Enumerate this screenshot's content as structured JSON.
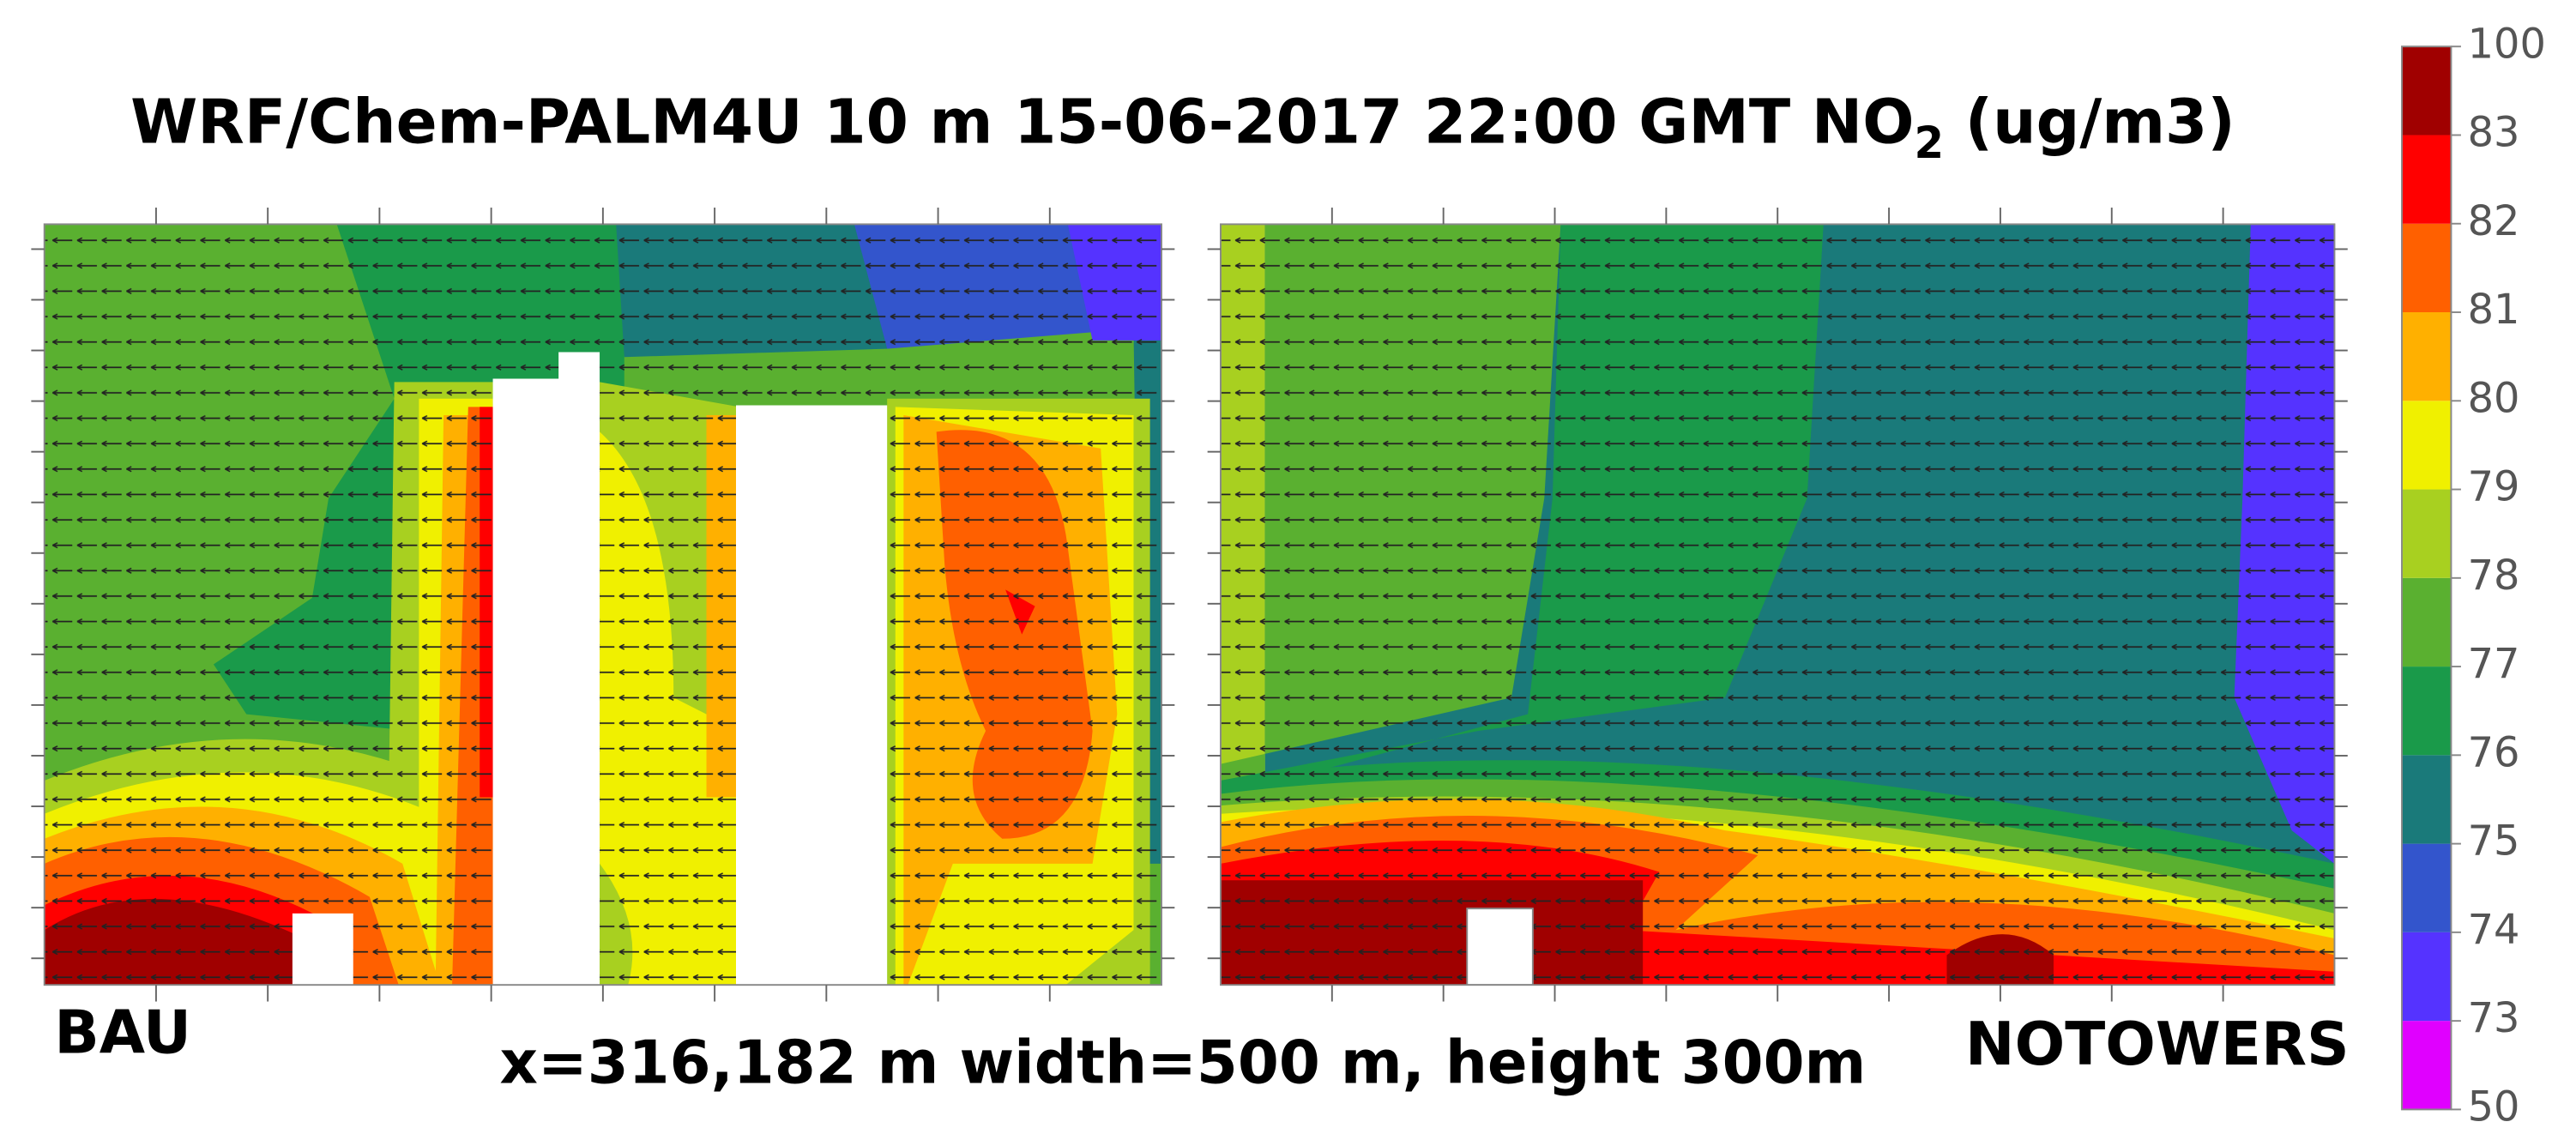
{
  "title": {
    "main": "WRF/Chem-PALM4U 10 m  15-06-2017 22:00 GMT NO",
    "subscript": "2",
    "tail": " (ug/m3)"
  },
  "panels": [
    {
      "label": "BAU"
    },
    {
      "label": "NOTOWERS"
    }
  ],
  "caption": "x=316,182 m width=500 m, height  300m",
  "colorbar": {
    "levels": [
      50,
      73,
      74,
      75,
      76,
      77,
      78,
      79,
      80,
      81,
      82,
      83,
      100
    ],
    "colors": [
      "#e000ff",
      "#5533ff",
      "#3355cc",
      "#1a7a7a",
      "#1a9a4a",
      "#5ab030",
      "#a8d020",
      "#f0f000",
      "#ffb000",
      "#ff6000",
      "#ff0000",
      "#a00000"
    ]
  }
}
